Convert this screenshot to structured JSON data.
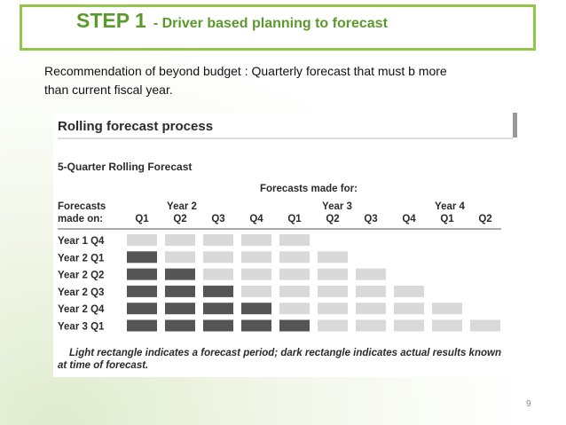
{
  "title": {
    "step": "STEP 1",
    "subtitle": "- Driver based planning to forecast"
  },
  "text": [
    "Recommendation of beyond budget : Quarterly forecast that must b more",
    "than current fiscal year."
  ],
  "figure": {
    "title": "Rolling forecast process",
    "subtitle": "5-Quarter Rolling Forecast",
    "made_for": "Forecasts made for:",
    "row_header": [
      "Forecasts",
      "made on:"
    ],
    "years": [
      "Year 2",
      "Year 3",
      "Year 4"
    ],
    "quarters": [
      "Q1",
      "Q2",
      "Q3",
      "Q4",
      "Q1",
      "Q2",
      "Q3",
      "Q4",
      "Q1",
      "Q2"
    ],
    "rows": [
      "Year 1 Q4",
      "Year 2 Q1",
      "Year 2 Q2",
      "Year 2 Q3",
      "Year 2 Q4",
      "Year 3 Q1"
    ],
    "caption": [
      "Light rectangle indicates a forecast period; dark rectangle indicates actual results known",
      "at time of forecast."
    ]
  },
  "page_number": "9"
}
